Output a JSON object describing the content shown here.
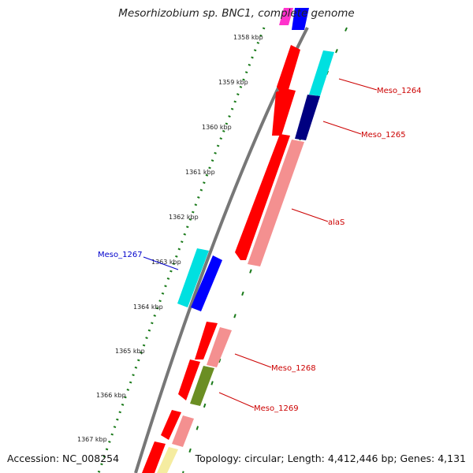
{
  "title": "Mesorhizobium sp. BNC1, complete genome",
  "footer": {
    "accession": "Accession: NC_008254",
    "stats": "Topology: circular; Length: 4,412,446 bp; Genes: 4,131"
  },
  "ruler": {
    "ticks": [
      "1358 kbp",
      "1359 kbp",
      "1360 kbp",
      "1361 kbp",
      "1362 kbp",
      "1363 kbp",
      "1364 kbp",
      "1365 kbp",
      "1366 kbp",
      "1367 kbp"
    ]
  },
  "gene_labels": [
    {
      "name": "Meso_1264",
      "color": "#cc0000"
    },
    {
      "name": "Meso_1265",
      "color": "#cc0000"
    },
    {
      "name": "alaS",
      "color": "#cc0000"
    },
    {
      "name": "Meso_1267",
      "color": "#0000cc"
    },
    {
      "name": "Meso_1268",
      "color": "#cc0000"
    },
    {
      "name": "Meso_1269",
      "color": "#cc0000"
    }
  ],
  "colors": {
    "backbone": "#777777",
    "ruler": "#1a7a1a",
    "red": "#ff0000",
    "pink": "#f49090",
    "cyan": "#00e0e0",
    "navy": "#000080",
    "blue": "#0000ff",
    "olive": "#6b8e23",
    "yellow": "#f5eca0",
    "magenta": "#ff33cc"
  }
}
